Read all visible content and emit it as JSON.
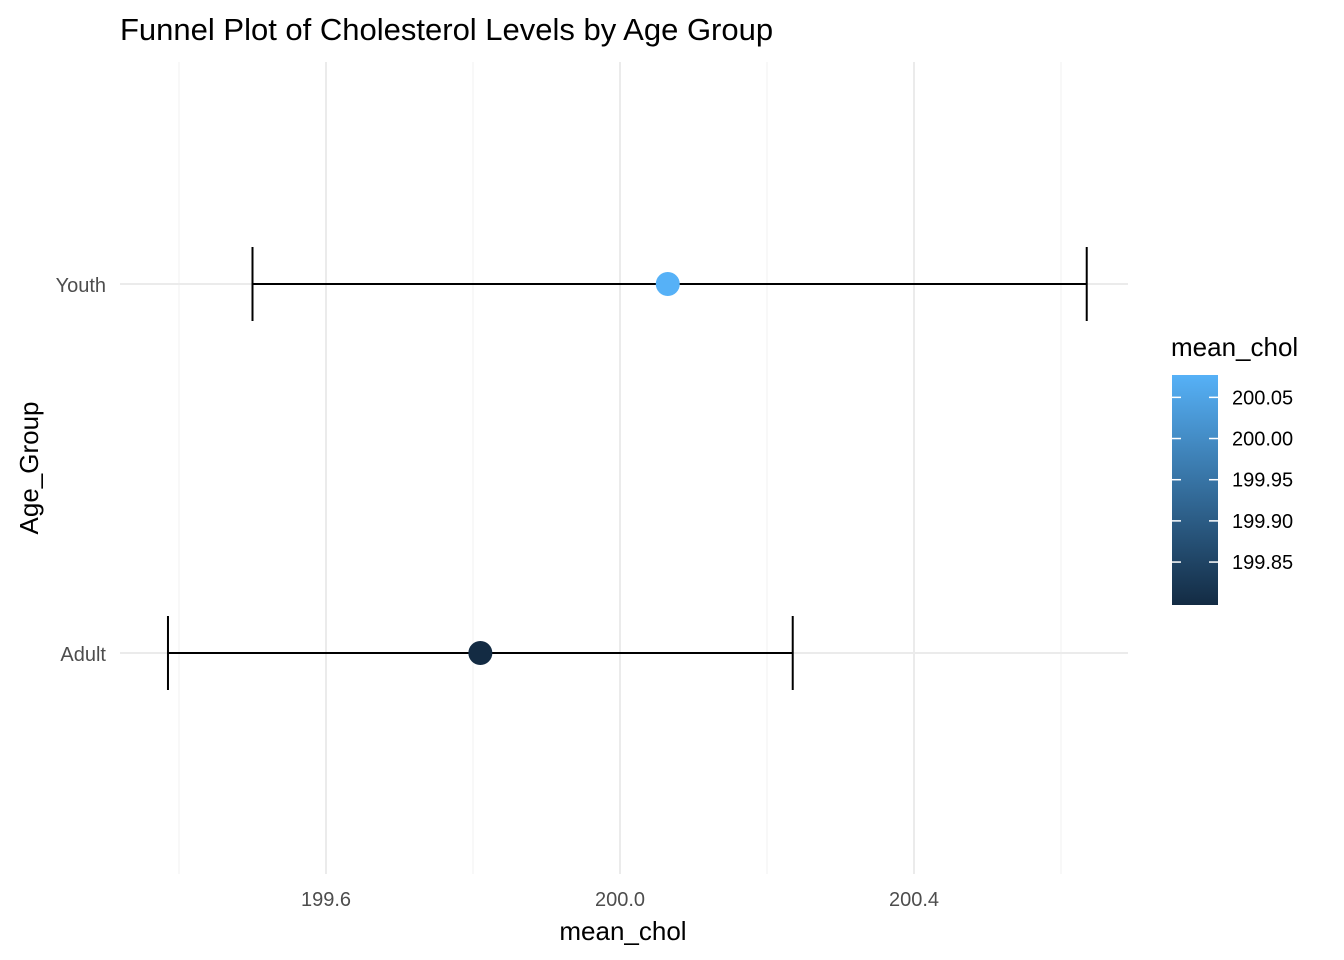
{
  "chart_data": {
    "type": "scatter",
    "title": "Funnel Plot of Cholesterol Levels by Age Group",
    "xlabel": "mean_chol",
    "ylabel": "Age_Group",
    "xlim": [
      199.39,
      200.71
    ],
    "x_ticks": [
      199.6,
      200.0,
      200.4
    ],
    "x_tick_labels": [
      "199.6",
      "200.0",
      "200.4"
    ],
    "categories": [
      "Adult",
      "Youth"
    ],
    "points": [
      {
        "category": "Adult",
        "mean": 199.81,
        "lower": 199.385,
        "upper": 200.235
      },
      {
        "category": "Youth",
        "mean": 200.065,
        "lower": 199.5,
        "upper": 200.635
      }
    ],
    "grid": true,
    "legend": {
      "title": "mean_chol",
      "position": "right",
      "type": "colorbar",
      "range": [
        199.81,
        200.065
      ],
      "breaks": [
        200.05,
        200.0,
        199.95,
        199.9,
        199.85
      ],
      "break_labels": [
        "200.05",
        "200.00",
        "199.95",
        "199.90",
        "199.85"
      ],
      "color_low": "#132b43",
      "color_high": "#56b1f7"
    }
  }
}
